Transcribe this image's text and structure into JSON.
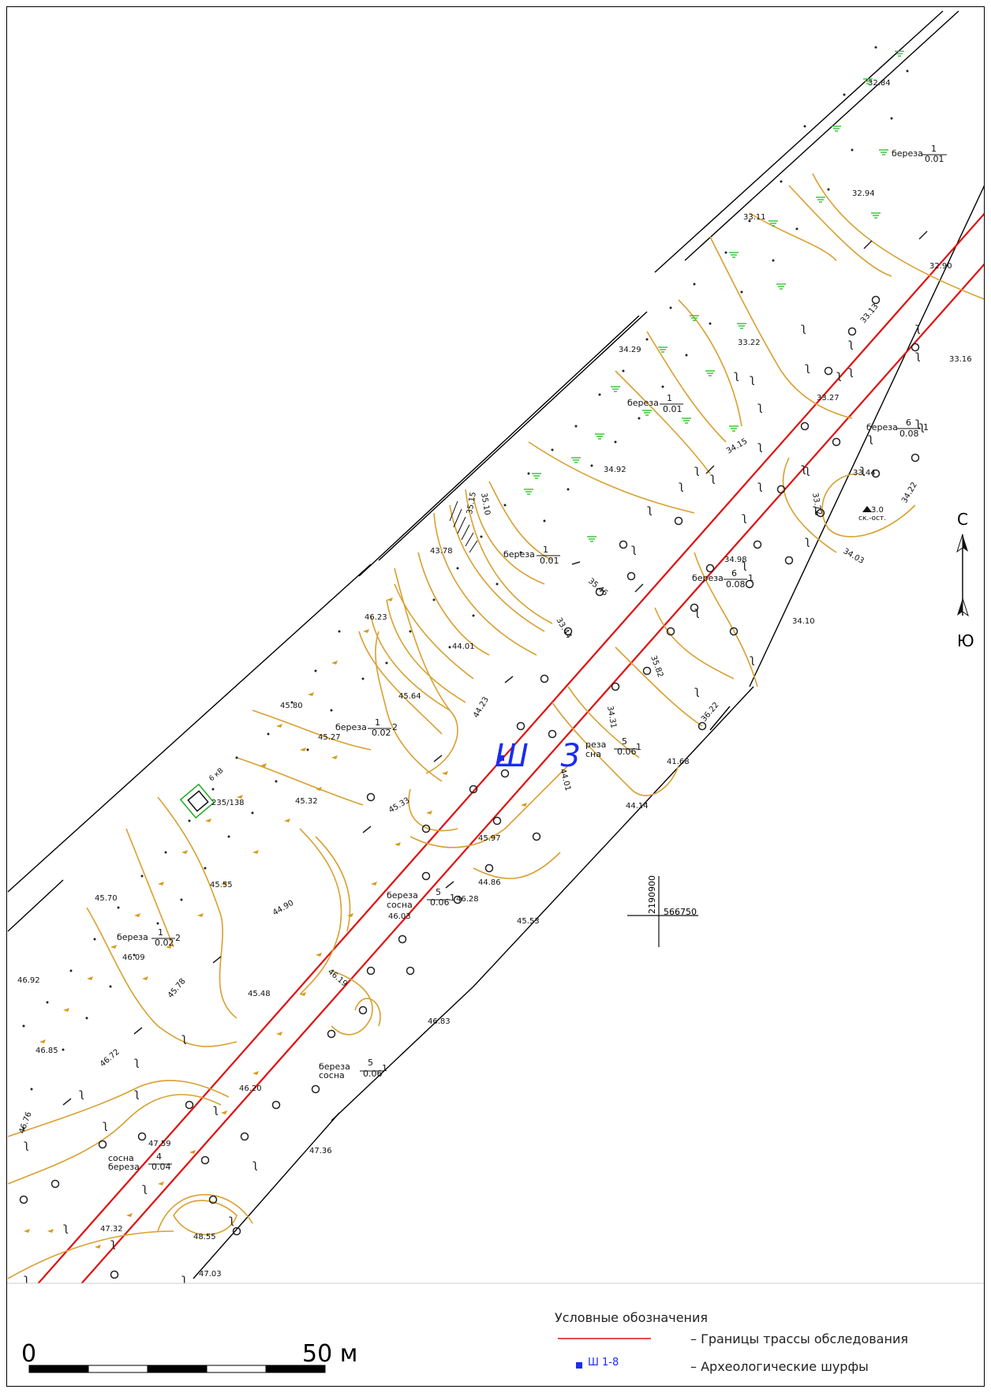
{
  "map": {
    "survey_pit_label": "Ш 3",
    "north_label": "С",
    "south_label": "Ю",
    "coord_y": "2190900",
    "coord_x": "566750"
  },
  "legend": {
    "title": "Условные обозначения",
    "boundary_label": "– Границы трассы обследования",
    "pits_symbol_label": "Ш 1-8",
    "pits_label": "– Археологические шурфы"
  },
  "scale": {
    "zero": "0",
    "max": "50 м"
  },
  "elevations": [
    "32.84",
    "32.94",
    "33.11",
    "32.90",
    "33.13",
    "33.22",
    "33.16",
    "33.27",
    "34.29",
    "34.15",
    "34.92",
    "33.44",
    "33.72",
    "34.22",
    "34.98",
    "34.03",
    "35.46",
    "34.10",
    "35.10",
    "35.15",
    "43.78",
    "46.23",
    "44.01",
    "45.64",
    "45.80",
    "45.27",
    "44.23",
    "45.32",
    "45.33",
    "45.97",
    "44.86",
    "46.28",
    "46.03",
    "45.53",
    "45.55",
    "45.70",
    "44.90",
    "46.09",
    "46.92",
    "45.78",
    "45.48",
    "46.19",
    "46.85",
    "46.72",
    "46.83",
    "46.20",
    "46.76",
    "47.59",
    "47.36",
    "47.32",
    "48.55",
    "47.03",
    "44.14",
    "41.68",
    "44.01",
    "35.82",
    "36.22",
    "33.44"
  ],
  "trees": [
    {
      "species": "березa",
      "count": "1",
      "dia": "0.01"
    },
    {
      "species": "береза",
      "count": "1",
      "dia": "0.01"
    },
    {
      "species": "береза",
      "count": "6",
      "dia": "0.08"
    },
    {
      "species": "береза",
      "count": "1",
      "dia": "0.02"
    },
    {
      "species": "береза",
      "count": "5",
      "dia": "0.06"
    },
    {
      "species": "сосна",
      "count": "4",
      "dia": "0.04"
    }
  ],
  "misc": {
    "mark_label": "3.0",
    "mark_sub": "ск.-ост.",
    "powerline_label": "6 кВ",
    "pole_label": "235/138"
  },
  "colors": {
    "boundary": "#e01010",
    "contour": "#d8a030",
    "marsh": "#30c030",
    "survey_pit": "#1a2cf0",
    "pole_box": "#22aa22"
  }
}
